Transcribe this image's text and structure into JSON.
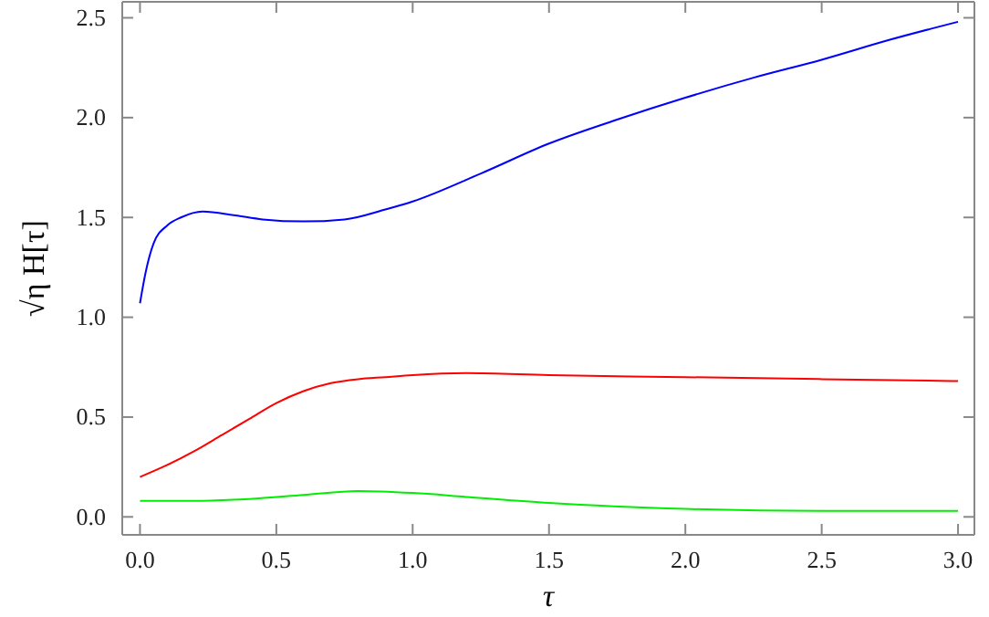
{
  "chart_data": {
    "type": "line",
    "xlabel": "τ",
    "ylabel": "√η H[τ]",
    "xlim": [
      -0.065,
      3.06
    ],
    "ylim": [
      -0.09,
      2.58
    ],
    "xticks": [
      {
        "value": 0,
        "label": "0.0"
      },
      0.5,
      {
        "value": 1,
        "label": "1.0"
      },
      1.5,
      {
        "value": 2,
        "label": "2.0"
      },
      2.5,
      {
        "value": 3,
        "label": "3.0"
      }
    ],
    "yticks": [
      {
        "value": 0,
        "label": "0.0"
      },
      0.5,
      {
        "value": 1,
        "label": "1.0"
      },
      1.5,
      {
        "value": 2,
        "label": "2.0"
      },
      2.5
    ],
    "grid": false,
    "marker": "none",
    "line_style": "solid",
    "series": [
      {
        "color": "#0000ff",
        "x": [
          0,
          0.02,
          0.05,
          0.1,
          0.15,
          0.23,
          0.35,
          0.45,
          0.6,
          0.75,
          0.9,
          1.0,
          1.25,
          1.5,
          1.75,
          2.0,
          2.25,
          2.5,
          2.75,
          3.0
        ],
        "values": [
          1.07,
          1.22,
          1.37,
          1.46,
          1.5,
          1.53,
          1.51,
          1.49,
          1.48,
          1.49,
          1.54,
          1.58,
          1.72,
          1.87,
          1.99,
          2.1,
          2.2,
          2.29,
          2.39,
          2.48
        ]
      },
      {
        "color": "#ff0000",
        "x": [
          0,
          0.1,
          0.2,
          0.3,
          0.4,
          0.5,
          0.6,
          0.7,
          0.8,
          0.9,
          1.0,
          1.2,
          1.5,
          2.0,
          2.5,
          3.0
        ],
        "values": [
          0.2,
          0.26,
          0.33,
          0.41,
          0.49,
          0.57,
          0.63,
          0.67,
          0.69,
          0.7,
          0.71,
          0.72,
          0.71,
          0.7,
          0.69,
          0.68
        ]
      },
      {
        "color": "#00ee00",
        "x": [
          0,
          0.2,
          0.4,
          0.6,
          0.8,
          1.0,
          1.2,
          1.5,
          2.0,
          2.5,
          3.0
        ],
        "values": [
          0.08,
          0.08,
          0.09,
          0.11,
          0.13,
          0.12,
          0.1,
          0.07,
          0.04,
          0.03,
          0.03
        ]
      }
    ]
  }
}
